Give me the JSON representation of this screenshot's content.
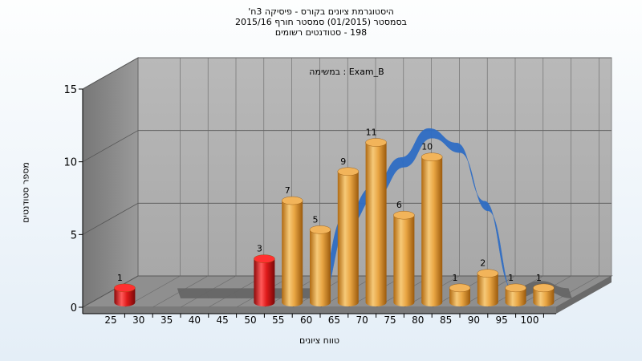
{
  "chart_data": {
    "type": "bar",
    "title": "היסטוגרמת ציונים בקורס - פיסיקה 3ח'",
    "subtitle_lines": [
      "בסמסטר (01/2015) סמסטר חורף 2015/16",
      "198 - סטודנטים רשומים"
    ],
    "annotation": "Exam_B : במשימה",
    "xlabel": "טווח ציונים",
    "ylabel": "מספר סטודנטים",
    "categories": [
      "25",
      "30",
      "35",
      "40",
      "45",
      "50",
      "55",
      "60",
      "65",
      "70",
      "75",
      "80",
      "85",
      "90",
      "95",
      "100"
    ],
    "values": [
      1,
      0,
      0,
      0,
      0,
      3,
      7,
      5,
      9,
      11,
      6,
      10,
      1,
      2,
      1,
      1
    ],
    "bar_colors": [
      "#e01b1b",
      "#e01b1b",
      "#e01b1b",
      "#e01b1b",
      "#e01b1b",
      "#e01b1b",
      "#e9a644",
      "#e9a644",
      "#e9a644",
      "#e9a644",
      "#e9a644",
      "#e9a644",
      "#e9a644",
      "#e9a644",
      "#e9a644",
      "#e9a644"
    ],
    "ylim": [
      0,
      15
    ],
    "yticks": [
      0,
      5,
      10,
      15
    ],
    "grid": true,
    "curve": {
      "x": [
        30,
        35,
        40,
        45,
        50,
        55,
        60,
        65,
        70,
        75,
        80,
        85,
        90,
        95,
        100
      ],
      "values": [
        0,
        0,
        0,
        0,
        0,
        0,
        5,
        7,
        9,
        11,
        10,
        6,
        0,
        0.5,
        0
      ],
      "colors": {
        "low": "#666666",
        "high": "#2f6dc4"
      }
    }
  }
}
